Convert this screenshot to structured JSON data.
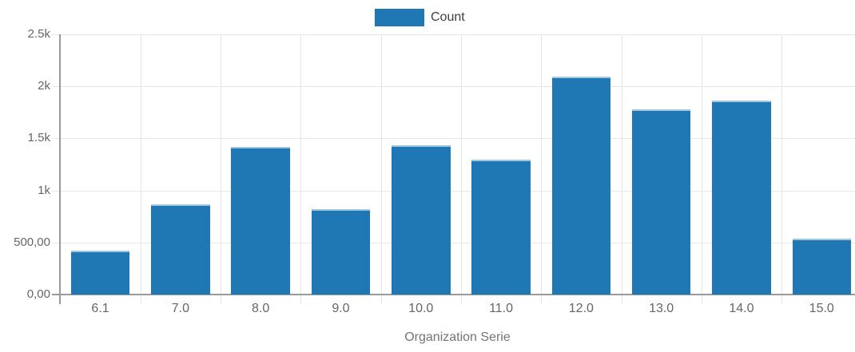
{
  "chart_data": {
    "type": "bar",
    "title": "",
    "xlabel": "Organization Serie",
    "ylabel": "",
    "categories": [
      "6.1",
      "7.0",
      "8.0",
      "9.0",
      "10.0",
      "11.0",
      "12.0",
      "13.0",
      "14.0",
      "15.0"
    ],
    "series": [
      {
        "name": "Count",
        "values": [
          420,
          870,
          1420,
          820,
          1435,
          1295,
          2090,
          1780,
          1865,
          540
        ]
      }
    ],
    "ylim": [
      0,
      2500
    ],
    "y_ticks": [
      {
        "value": 0,
        "label": "0,00"
      },
      {
        "value": 500,
        "label": "500,00"
      },
      {
        "value": 1000,
        "label": "1k"
      },
      {
        "value": 1500,
        "label": "1.5k"
      },
      {
        "value": 2000,
        "label": "2k"
      },
      {
        "value": 2500,
        "label": "2.5k"
      }
    ],
    "grid": true,
    "legend_position": "top-center"
  },
  "legend": {
    "items": [
      {
        "label": "Count",
        "color": "#1f77b4"
      }
    ]
  },
  "colors": {
    "bar": "#1f77b4",
    "bar_top_edge": "#a3c6df",
    "grid": "#e7e7e7",
    "axis": "#9a9a9a",
    "tick_label": "#666666",
    "axis_title": "#757575",
    "legend_text": "#3f3f3f",
    "background": "#ffffff"
  }
}
